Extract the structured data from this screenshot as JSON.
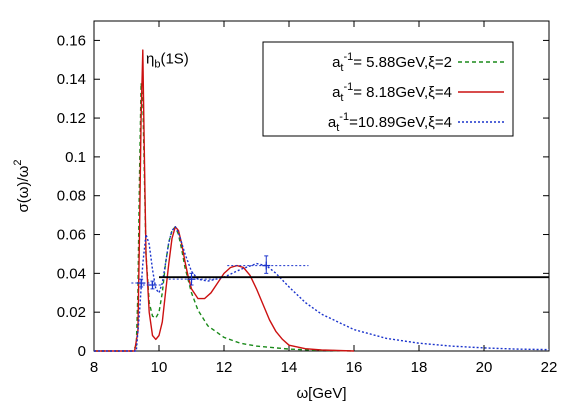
{
  "chart_data": {
    "type": "line",
    "xlabel": "ω[GeV]",
    "ylabel_parts": [
      "σ(ω)/ω",
      "2"
    ],
    "xlim": [
      8,
      22
    ],
    "ylim": [
      0,
      0.17
    ],
    "xticks": [
      8,
      10,
      12,
      14,
      16,
      18,
      20,
      22
    ],
    "yticks": [
      0,
      0.02,
      0.04,
      0.06,
      0.08,
      0.1,
      0.12,
      0.14,
      0.16
    ],
    "xtick_labels": [
      "8",
      "10",
      "12",
      "14",
      "16",
      "18",
      "20",
      "22"
    ],
    "ytick_labels": [
      "0",
      "0.02",
      "0.04",
      "0.06",
      "0.08",
      "0.1",
      "0.12",
      "0.14",
      "0.16"
    ],
    "annotation": {
      "text": "η",
      "sub": "b",
      "rest": "(1S)",
      "x": 9.6,
      "y": 0.148
    },
    "legend_position": "top-right",
    "series": [
      {
        "legend": {
          "a": "a",
          "sub": "t",
          "sup": "-1",
          "rest": "= 5.88GeV,ξ=2"
        },
        "color": "#1a8a1a",
        "dash": "4,3",
        "x": [
          8.0,
          9.2,
          9.3,
          9.35,
          9.4,
          9.45,
          9.5,
          9.55,
          9.6,
          9.7,
          9.8,
          9.9,
          10.0,
          10.1,
          10.2,
          10.3,
          10.4,
          10.5,
          10.6,
          10.7,
          10.8,
          11.0,
          11.2,
          11.5,
          12.0,
          12.5,
          13.0,
          14.0,
          15.0,
          16.0
        ],
        "y": [
          0.0,
          0.0,
          0.003,
          0.03,
          0.09,
          0.138,
          0.13,
          0.09,
          0.05,
          0.025,
          0.018,
          0.017,
          0.02,
          0.03,
          0.045,
          0.056,
          0.062,
          0.064,
          0.06,
          0.052,
          0.043,
          0.03,
          0.021,
          0.013,
          0.007,
          0.004,
          0.0025,
          0.001,
          0.0003,
          0.0
        ]
      },
      {
        "legend": {
          "a": "a",
          "sub": "t",
          "sup": "-1",
          "rest": "= 8.18GeV,ξ=4"
        },
        "color": "#cc1111",
        "dash": "",
        "x": [
          8.0,
          9.25,
          9.35,
          9.4,
          9.45,
          9.5,
          9.55,
          9.6,
          9.7,
          9.8,
          9.9,
          10.0,
          10.1,
          10.2,
          10.3,
          10.4,
          10.5,
          10.6,
          10.7,
          10.8,
          10.9,
          11.0,
          11.2,
          11.4,
          11.6,
          11.8,
          12.0,
          12.2,
          12.4,
          12.6,
          12.8,
          13.0,
          13.2,
          13.4,
          13.6,
          13.8,
          14.0,
          14.5,
          15.0,
          16.0
        ],
        "y": [
          0.0,
          0.0,
          0.01,
          0.06,
          0.12,
          0.155,
          0.1,
          0.05,
          0.02,
          0.008,
          0.006,
          0.008,
          0.015,
          0.03,
          0.045,
          0.058,
          0.064,
          0.062,
          0.055,
          0.046,
          0.038,
          0.032,
          0.027,
          0.027,
          0.03,
          0.035,
          0.04,
          0.043,
          0.044,
          0.043,
          0.039,
          0.032,
          0.024,
          0.016,
          0.01,
          0.006,
          0.003,
          0.0012,
          0.0005,
          0.0
        ]
      },
      {
        "legend": {
          "a": "a",
          "sub": "t",
          "sup": "-1",
          "rest": "=10.89GeV,ξ=4"
        },
        "color": "#1a33cc",
        "dash": "2,2",
        "x": [
          8.0,
          9.3,
          9.4,
          9.5,
          9.6,
          9.7,
          9.8,
          9.9,
          10.0,
          10.1,
          10.2,
          10.3,
          10.4,
          10.5,
          10.6,
          10.8,
          11.0,
          11.2,
          11.5,
          12.0,
          12.5,
          13.0,
          13.3,
          13.6,
          14.0,
          14.5,
          15.0,
          16.0,
          17.0,
          18.0,
          19.0,
          20.0,
          21.0,
          22.0
        ],
        "y": [
          0.0,
          0.0,
          0.02,
          0.045,
          0.06,
          0.055,
          0.042,
          0.032,
          0.03,
          0.035,
          0.045,
          0.056,
          0.062,
          0.064,
          0.061,
          0.05,
          0.041,
          0.037,
          0.036,
          0.038,
          0.042,
          0.045,
          0.044,
          0.04,
          0.033,
          0.025,
          0.019,
          0.011,
          0.0065,
          0.004,
          0.0025,
          0.0016,
          0.001,
          0.0007
        ]
      },
      {
        "legend": null,
        "color": "#000000",
        "dash": "",
        "x": [
          10.0,
          22.0
        ],
        "y": [
          0.038,
          0.038
        ]
      }
    ],
    "error_points": [
      {
        "x": 9.45,
        "y": 0.035,
        "xerr_lo": 9.15,
        "xerr_hi": 9.8,
        "yerr_lo": 0.033,
        "yerr_hi": 0.037
      },
      {
        "x": 9.8,
        "y": 0.034,
        "xerr_lo": 9.5,
        "xerr_hi": 10.1,
        "yerr_lo": 0.032,
        "yerr_hi": 0.036
      },
      {
        "x": 11.0,
        "y": 0.037,
        "xerr_lo": 10.3,
        "xerr_hi": 11.7,
        "yerr_lo": 0.034,
        "yerr_hi": 0.04
      },
      {
        "x": 13.3,
        "y": 0.044,
        "xerr_lo": 12.1,
        "xerr_hi": 14.6,
        "yerr_lo": 0.04,
        "yerr_hi": 0.049
      }
    ]
  }
}
